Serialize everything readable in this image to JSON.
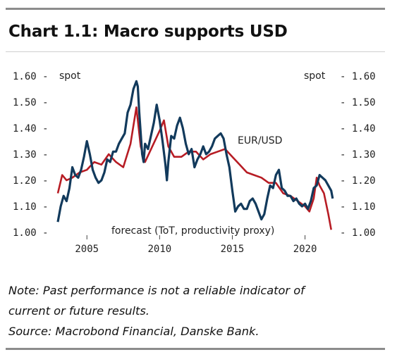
{
  "chart_title": "Chart 1.1: Macro supports USD",
  "notes": {
    "line1": "Note: Past performance is not a reliable indicator of",
    "line2": "current or future results.",
    "source": "Source: Macrobond Financial, Danske Bank."
  },
  "chart_data": {
    "type": "line",
    "title": "Chart 1.1: Macro supports USD",
    "y_unit_left": "spot",
    "y_unit_right": "spot",
    "ylim": [
      1.0,
      1.6
    ],
    "y_ticks": [
      1.0,
      1.1,
      1.2,
      1.3,
      1.4,
      1.5,
      1.6
    ],
    "y_tick_labels_left": [
      "1.00 -",
      "1.10 -",
      "1.20 -",
      "1.30 -",
      "1.40 -",
      "1.50 -",
      "1.60 -"
    ],
    "y_tick_labels_right": [
      "- 1.00",
      "- 1.10",
      "- 1.20",
      "- 1.30",
      "- 1.40",
      "- 1.50",
      "- 1.60"
    ],
    "xlim": [
      2003,
      2022.3
    ],
    "x_ticks": [
      2005,
      2010,
      2015,
      2020
    ],
    "x_tick_labels": [
      "2005",
      "2010",
      "2015",
      "2020"
    ],
    "grid": false,
    "series": [
      {
        "name": "EUR/USD",
        "color": "#123a5c",
        "x": [
          2003.0,
          2003.2,
          2003.4,
          2003.6,
          2003.8,
          2004.0,
          2004.2,
          2004.4,
          2004.6,
          2004.8,
          2005.0,
          2005.2,
          2005.4,
          2005.6,
          2005.8,
          2006.0,
          2006.2,
          2006.4,
          2006.6,
          2006.8,
          2007.0,
          2007.2,
          2007.4,
          2007.6,
          2007.8,
          2008.0,
          2008.2,
          2008.4,
          2008.5,
          2008.6,
          2008.8,
          2008.9,
          2009.0,
          2009.2,
          2009.4,
          2009.6,
          2009.8,
          2010.0,
          2010.2,
          2010.4,
          2010.5,
          2010.6,
          2010.8,
          2011.0,
          2011.2,
          2011.4,
          2011.6,
          2011.8,
          2012.0,
          2012.2,
          2012.4,
          2012.6,
          2012.8,
          2013.0,
          2013.2,
          2013.4,
          2013.6,
          2013.8,
          2014.0,
          2014.2,
          2014.4,
          2014.6,
          2014.8,
          2015.0,
          2015.2,
          2015.4,
          2015.6,
          2015.8,
          2016.0,
          2016.2,
          2016.4,
          2016.6,
          2016.8,
          2017.0,
          2017.2,
          2017.4,
          2017.6,
          2017.8,
          2018.0,
          2018.2,
          2018.4,
          2018.6,
          2018.8,
          2019.0,
          2019.2,
          2019.4,
          2019.6,
          2019.8,
          2020.0,
          2020.2,
          2020.4,
          2020.6,
          2020.8,
          2021.0,
          2021.2,
          2021.4,
          2021.6,
          2021.8,
          2021.9
        ],
        "y": [
          1.04,
          1.1,
          1.14,
          1.12,
          1.17,
          1.25,
          1.22,
          1.21,
          1.24,
          1.29,
          1.35,
          1.3,
          1.24,
          1.21,
          1.19,
          1.2,
          1.23,
          1.28,
          1.27,
          1.31,
          1.31,
          1.34,
          1.36,
          1.38,
          1.46,
          1.49,
          1.55,
          1.58,
          1.56,
          1.46,
          1.3,
          1.27,
          1.34,
          1.32,
          1.37,
          1.42,
          1.49,
          1.43,
          1.35,
          1.26,
          1.2,
          1.27,
          1.37,
          1.36,
          1.41,
          1.44,
          1.4,
          1.34,
          1.3,
          1.32,
          1.25,
          1.28,
          1.3,
          1.33,
          1.3,
          1.31,
          1.33,
          1.36,
          1.37,
          1.38,
          1.36,
          1.3,
          1.25,
          1.16,
          1.08,
          1.1,
          1.11,
          1.09,
          1.09,
          1.12,
          1.13,
          1.11,
          1.08,
          1.05,
          1.07,
          1.13,
          1.18,
          1.17,
          1.22,
          1.24,
          1.17,
          1.16,
          1.14,
          1.14,
          1.12,
          1.13,
          1.11,
          1.1,
          1.11,
          1.09,
          1.12,
          1.17,
          1.18,
          1.22,
          1.21,
          1.2,
          1.18,
          1.16,
          1.13
        ]
      },
      {
        "name": "forecast (ToT, productivity proxy)",
        "color": "#b71c24",
        "x": [
          2003.0,
          2003.3,
          2003.6,
          2004.0,
          2004.5,
          2005.0,
          2005.5,
          2006.0,
          2006.5,
          2007.0,
          2007.5,
          2008.0,
          2008.4,
          2008.7,
          2009.0,
          2009.5,
          2010.0,
          2010.3,
          2010.6,
          2011.0,
          2011.5,
          2012.0,
          2012.5,
          2013.0,
          2013.5,
          2014.0,
          2014.5,
          2015.0,
          2015.5,
          2016.0,
          2016.5,
          2017.0,
          2017.5,
          2018.0,
          2018.5,
          2019.0,
          2019.5,
          2020.0,
          2020.3,
          2020.6,
          2020.8,
          2021.0,
          2021.3,
          2021.6,
          2021.8
        ],
        "y": [
          1.15,
          1.22,
          1.2,
          1.21,
          1.23,
          1.24,
          1.27,
          1.26,
          1.3,
          1.27,
          1.25,
          1.34,
          1.48,
          1.33,
          1.27,
          1.33,
          1.39,
          1.43,
          1.33,
          1.29,
          1.29,
          1.31,
          1.31,
          1.28,
          1.3,
          1.31,
          1.32,
          1.29,
          1.26,
          1.23,
          1.22,
          1.21,
          1.19,
          1.19,
          1.15,
          1.14,
          1.12,
          1.1,
          1.08,
          1.13,
          1.21,
          1.18,
          1.15,
          1.07,
          1.01
        ]
      }
    ]
  }
}
